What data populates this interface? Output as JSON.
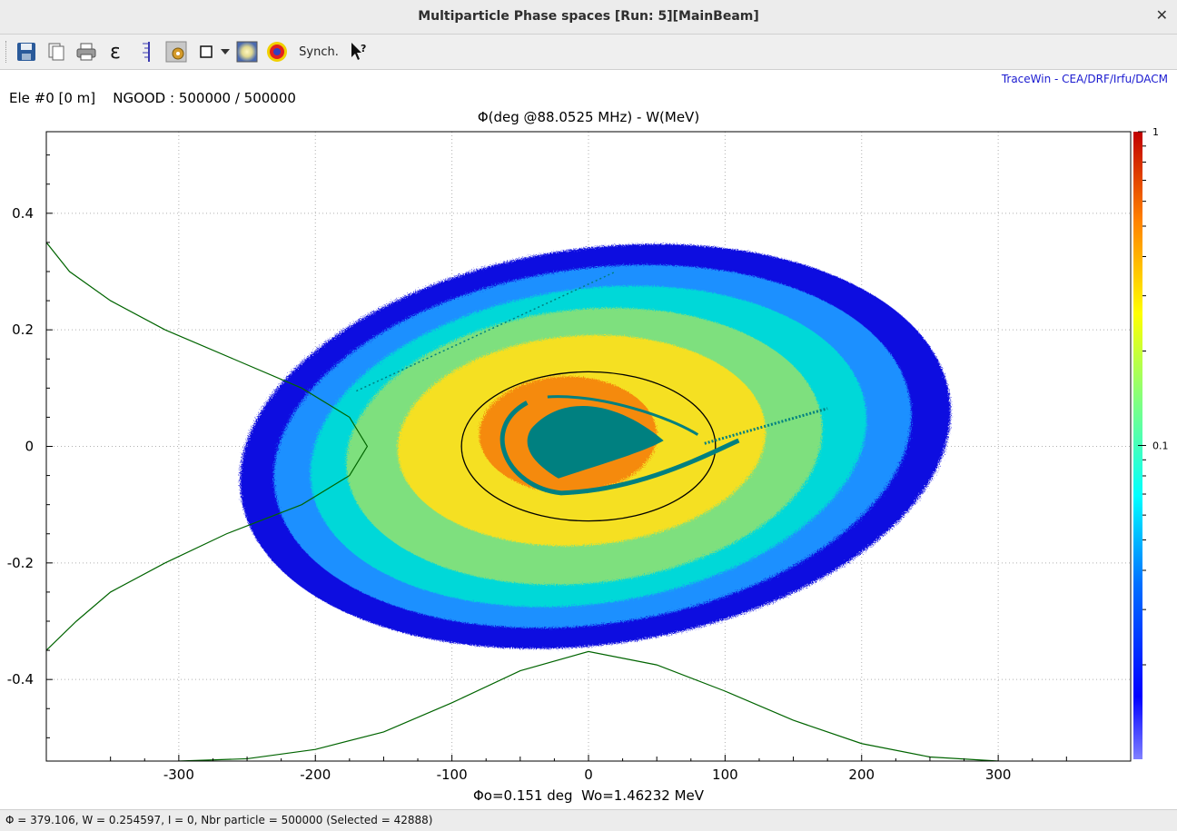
{
  "window": {
    "title": "Multiparticle Phase spaces [Run: 5][MainBeam]",
    "close_glyph": "✕"
  },
  "toolbar": {
    "items": [
      "save-icon",
      "copy-icon",
      "print-icon",
      "emittance-epsilon-icon",
      "ruler-icon",
      "settings-icon",
      "frame-checkbox-icon",
      "dropdown-arrow-icon",
      "density-view-icon",
      "target-view-icon",
      "help-cursor-icon"
    ],
    "epsilon_glyph": "ε",
    "synch_label": "Synch."
  },
  "plot": {
    "credit": "TraceWin - CEA/DRF/Irfu/DACM",
    "element_info": "Ele #0 [0 m]    NGOOD : 500000 / 500000",
    "title": "Φ(deg @88.0525 MHz) - W(MeV)",
    "xlabel": "Φo=0.151 deg  Wo=1.46232 MeV"
  },
  "colorbar": {
    "labels": [
      "1",
      "0.1"
    ]
  },
  "status": {
    "text": "Φ = 379.106, W = 0.254597, I = 0, Nbr particle = 500000 (Selected = 42888)"
  },
  "colors": {
    "ellipse": "#000000",
    "core": "#008080",
    "profile": "#006400",
    "credit": "#1a1ad0"
  },
  "chart_data": {
    "type": "scatter",
    "title": "Φ(deg @88.0525 MHz) - W(MeV)",
    "xlabel": "Φo=0.151 deg  Wo=1.46232 MeV",
    "ylabel": "",
    "xlim": [
      -397,
      397
    ],
    "ylim": [
      -0.54,
      0.54
    ],
    "xticks": [
      -300,
      -200,
      -100,
      0,
      100,
      200,
      300
    ],
    "xtick_labels": [
      "-300",
      "-200",
      "-100",
      "0",
      "100",
      "200",
      "300"
    ],
    "yticks": [
      0.4,
      0.2,
      0,
      -0.2,
      -0.4
    ],
    "ytick_labels": [
      "0.4",
      "0.2",
      "0",
      "-0.2",
      "-0.4"
    ],
    "grid": true,
    "density_levels": [
      {
        "level": "edge",
        "color": "#1010e0",
        "cx": 5,
        "cy": 0,
        "rx": 262,
        "ry": 0.34,
        "angle_deg": 8
      },
      {
        "level": "low",
        "color": "#1e90ff",
        "cx": 3,
        "cy": 0,
        "rx": 235,
        "ry": 0.305,
        "angle_deg": 8
      },
      {
        "level": "mid-low",
        "color": "#00d8d8",
        "cx": 0,
        "cy": 0,
        "rx": 205,
        "ry": 0.27,
        "angle_deg": 8
      },
      {
        "level": "mid",
        "color": "#7ee07e",
        "cx": -3,
        "cy": 0,
        "rx": 175,
        "ry": 0.235,
        "angle_deg": 6
      },
      {
        "level": "high",
        "color": "#f5e020",
        "cx": -5,
        "cy": 0.01,
        "rx": 135,
        "ry": 0.18,
        "angle_deg": 4
      },
      {
        "level": "peak",
        "color": "#f58a10",
        "cx": -15,
        "cy": 0.02,
        "rx": 65,
        "ry": 0.1,
        "angle_deg": 0
      }
    ],
    "rms_ellipse": {
      "cx": 0,
      "cy": 0,
      "rx": 93,
      "ry": 0.128
    },
    "profile_x": {
      "x": [
        -397,
        -300,
        -250,
        -200,
        -150,
        -100,
        -50,
        0,
        50,
        100,
        150,
        200,
        250,
        300,
        397
      ],
      "y": [
        -0.541,
        -0.54,
        -0.536,
        -0.52,
        -0.49,
        -0.44,
        -0.385,
        -0.352,
        -0.375,
        -0.42,
        -0.47,
        -0.51,
        -0.533,
        -0.54,
        -0.541
      ]
    },
    "profile_y": {
      "y": [
        0.35,
        0.3,
        0.25,
        0.2,
        0.15,
        0.1,
        0.05,
        0,
        -0.05,
        -0.1,
        -0.15,
        -0.2,
        -0.25,
        -0.3,
        -0.35
      ],
      "x": [
        -397,
        -380,
        -350,
        -310,
        -260,
        -210,
        -175,
        -162,
        -175,
        -210,
        -265,
        -310,
        -350,
        -375,
        -397
      ]
    },
    "colorbar": {
      "scale": "log",
      "min": 0.01,
      "max": 1,
      "tick_labels": [
        "1",
        "0.1"
      ]
    }
  }
}
